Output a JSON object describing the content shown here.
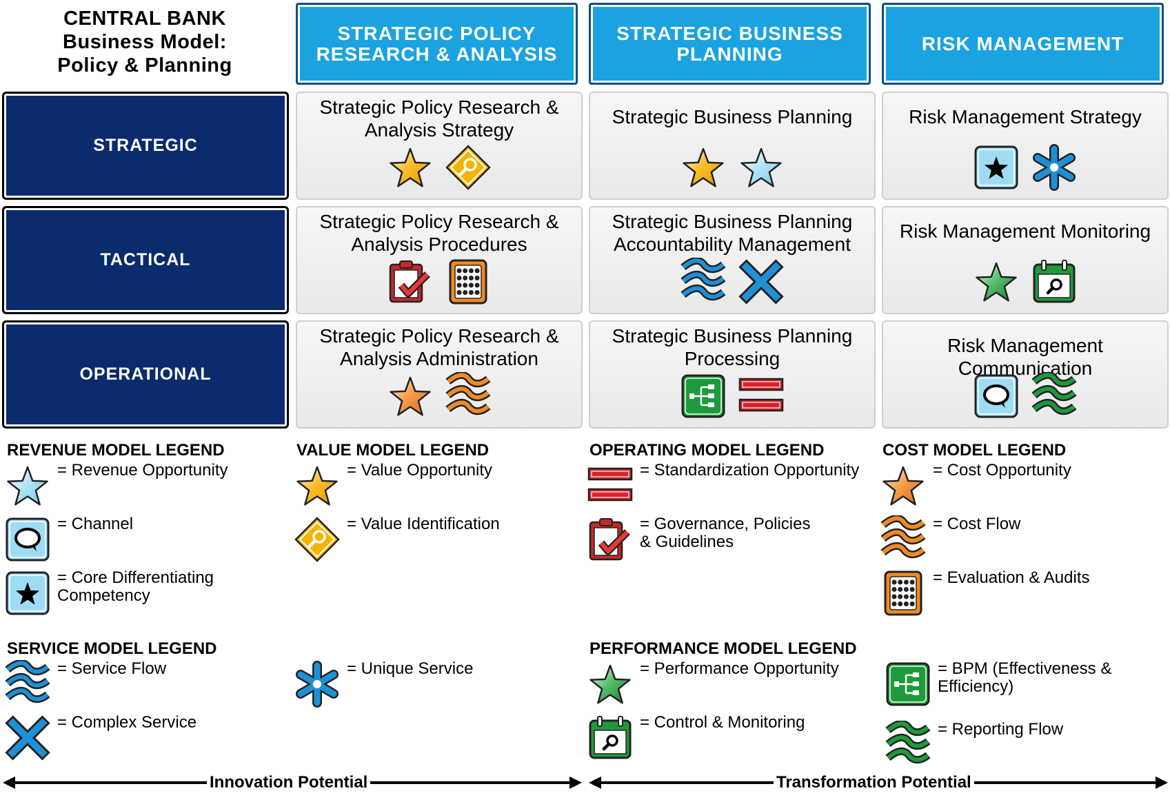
{
  "title": [
    "CENTRAL BANK",
    "Business Model:",
    "Policy & Planning"
  ],
  "columns": [
    "STRATEGIC POLICY RESEARCH & ANALYSIS",
    "STRATEGIC BUSINESS PLANNING",
    "RISK MANAGEMENT"
  ],
  "rows": [
    "STRATEGIC",
    "TACTICAL",
    "OPERATIONAL"
  ],
  "cells": [
    [
      {
        "text": "Strategic Policy Research & Analysis Strategy",
        "icons": [
          "value-star-icon",
          "value-identification-icon"
        ]
      },
      {
        "text": "Strategic Business Planning",
        "icons": [
          "value-star-icon",
          "revenue-star-icon"
        ]
      },
      {
        "text": "Risk Management Strategy",
        "icons": [
          "core-differentiating-icon",
          "unique-service-icon"
        ]
      }
    ],
    [
      {
        "text": "Strategic Policy Research & Analysis Procedures",
        "icons": [
          "governance-clipboard-icon",
          "evaluation-calculator-icon"
        ]
      },
      {
        "text": "Strategic Business Planning Accountability Management",
        "icons": [
          "service-flow-icon",
          "complex-service-icon"
        ]
      },
      {
        "text": "Risk Management Monitoring",
        "icons": [
          "performance-star-icon",
          "control-monitoring-icon"
        ]
      }
    ],
    [
      {
        "text": "Strategic Policy Research & Analysis Administration",
        "icons": [
          "cost-star-icon",
          "cost-flow-icon"
        ]
      },
      {
        "text": "Strategic Business Planning Processing",
        "icons": [
          "bpm-icon",
          "standardization-icon"
        ]
      },
      {
        "text": "Risk Management Communication",
        "icons": [
          "channel-icon",
          "reporting-flow-icon"
        ]
      }
    ]
  ],
  "legends": {
    "revenue": {
      "heading": "REVENUE MODEL LEGEND",
      "items": [
        {
          "icon": "revenue-star-icon",
          "label": "= Revenue Opportunity"
        },
        {
          "icon": "channel-icon",
          "label": "= Channel"
        },
        {
          "icon": "core-differentiating-icon",
          "label": "= Core Differentiating Competency"
        }
      ]
    },
    "value": {
      "heading": "VALUE MODEL LEGEND",
      "items": [
        {
          "icon": "value-star-icon",
          "label": "= Value Opportunity"
        },
        {
          "icon": "value-identification-icon",
          "label": "= Value Identification"
        }
      ]
    },
    "operating": {
      "heading": "OPERATING MODEL LEGEND",
      "items": [
        {
          "icon": "standardization-icon",
          "label": "= Standardization Opportunity"
        },
        {
          "icon": "governance-clipboard-icon",
          "label": "= Governance, Policies & Guidelines"
        }
      ]
    },
    "cost": {
      "heading": "COST MODEL LEGEND",
      "items": [
        {
          "icon": "cost-star-icon",
          "label": "= Cost Opportunity"
        },
        {
          "icon": "cost-flow-icon",
          "label": "= Cost Flow"
        },
        {
          "icon": "evaluation-calculator-icon",
          "label": "= Evaluation & Audits"
        }
      ]
    },
    "service": {
      "heading": "SERVICE MODEL LEGEND",
      "items": [
        {
          "icon": "service-flow-icon",
          "label": "= Service Flow"
        },
        {
          "icon": "complex-service-icon",
          "label": "= Complex Service"
        },
        {
          "icon": "unique-service-icon",
          "label": "= Unique Service"
        }
      ]
    },
    "performance": {
      "heading": "PERFORMANCE MODEL LEGEND",
      "items": [
        {
          "icon": "performance-star-icon",
          "label": "= Performance Opportunity"
        },
        {
          "icon": "control-monitoring-icon",
          "label": "= Control & Monitoring"
        },
        {
          "icon": "bpm-icon",
          "label": "= BPM (Effectiveness & Efficiency)"
        },
        {
          "icon": "reporting-flow-icon",
          "label": "= Reporting Flow"
        }
      ]
    }
  },
  "axes": {
    "innovation": "Innovation Potential",
    "transformation": "Transformation Potential"
  },
  "colors": {
    "header_blue": "#1aa3e0",
    "row_navy": "#0a2c6e",
    "value_gold": "#f5b400",
    "revenue_light_blue": "#bfe8f7",
    "cost_orange": "#f08a24",
    "performance_green": "#1f9a3a",
    "standardization_red": "#d9232b",
    "service_blue": "#1e90d6"
  }
}
